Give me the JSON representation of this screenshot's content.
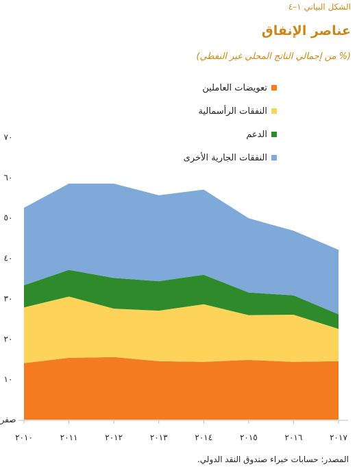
{
  "figure_label": "الشكل البياني ١–٤",
  "title": "عناصر الإنفاق",
  "subtitle": "(% من إجمالي الناتج المحلي غير النفطي)",
  "source": "المصدر: حسابات خبراء صندوق النقد الدولي.",
  "colors": {
    "employee": "#f47b20",
    "capital": "#fdd35a",
    "subsidies": "#2f8a2b",
    "other_current": "#7fa9d9",
    "title": "#c8891a"
  },
  "chart_data": {
    "type": "area",
    "stacked": true,
    "title": "عناصر الإنفاق",
    "subtitle": "(% من إجمالي الناتج المحلي غير النفطي)",
    "x": [
      "٢٠١٠",
      "٢٠١١",
      "٢٠١٢",
      "٢٠١٣",
      "٢٠١٤",
      "٢٠١٥",
      "٢٠١٦",
      "٢٠١٧"
    ],
    "ylim": [
      0,
      70
    ],
    "yticks": [
      0,
      10,
      20,
      30,
      40,
      50,
      60,
      70
    ],
    "ytick_labels": [
      "صفر",
      "١٠",
      "٢٠",
      "٣٠",
      "٤٠",
      "٥٠",
      "٦٠",
      "٧٠"
    ],
    "legend_position": "top-center",
    "grid": false,
    "series": [
      {
        "key": "employee",
        "name": "تعويضات العاملين",
        "values": [
          14.0,
          15.3,
          15.5,
          14.5,
          14.3,
          14.8,
          14.3,
          14.5
        ]
      },
      {
        "key": "capital",
        "name": "النفقات الرأسمالية",
        "values": [
          13.8,
          15.2,
          12.0,
          12.5,
          14.3,
          11.1,
          11.7,
          8.0
        ]
      },
      {
        "key": "subsidies",
        "name": "الدعم",
        "values": [
          5.5,
          6.6,
          7.6,
          7.3,
          7.3,
          5.6,
          4.8,
          3.6
        ]
      },
      {
        "key": "other_current",
        "name": "النفقات الجارية الأخرى",
        "values": [
          19.2,
          21.4,
          23.4,
          21.3,
          21.1,
          18.4,
          16.0,
          16.0
        ]
      }
    ]
  }
}
